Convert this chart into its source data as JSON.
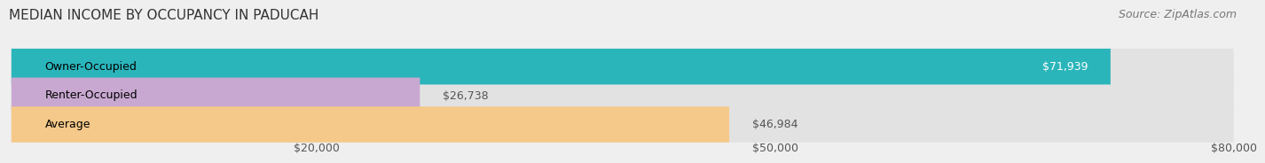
{
  "title": "MEDIAN INCOME BY OCCUPANCY IN PADUCAH",
  "source": "Source: ZipAtlas.com",
  "categories": [
    "Owner-Occupied",
    "Renter-Occupied",
    "Average"
  ],
  "values": [
    71939,
    26738,
    46984
  ],
  "bar_colors": [
    "#2ab5bb",
    "#c8a8d0",
    "#f5c98a"
  ],
  "value_labels": [
    "$71,939",
    "$26,738",
    "$46,984"
  ],
  "xlim": [
    0,
    80000
  ],
  "xticks": [
    0,
    20000,
    50000,
    80000
  ],
  "xticklabels": [
    "",
    "$20,000",
    "$50,000",
    "$80,000"
  ],
  "background_color": "#efefef",
  "bar_bg_color": "#e2e2e2",
  "title_fontsize": 11,
  "source_fontsize": 9,
  "label_fontsize": 9,
  "value_fontsize": 9,
  "tick_fontsize": 9
}
